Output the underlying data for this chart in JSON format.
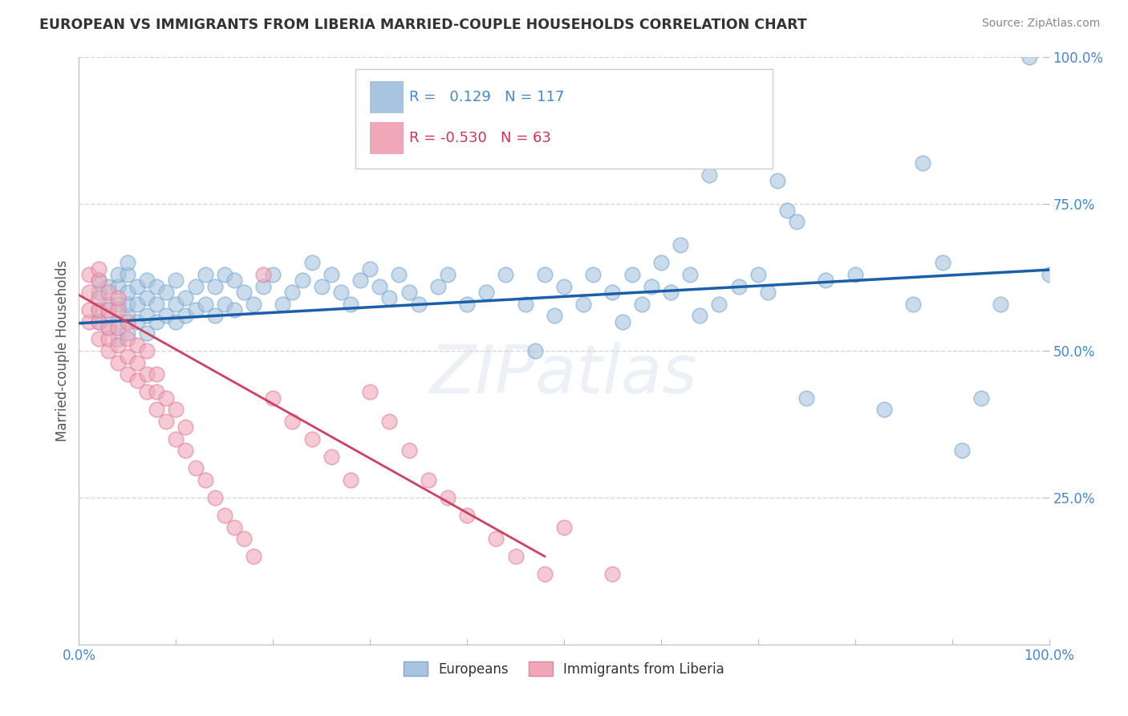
{
  "title": "EUROPEAN VS IMMIGRANTS FROM LIBERIA MARRIED-COUPLE HOUSEHOLDS CORRELATION CHART",
  "source": "Source: ZipAtlas.com",
  "ylabel": "Married-couple Households",
  "watermark": "ZIPatlas",
  "blue_R": 0.129,
  "blue_N": 117,
  "pink_R": -0.53,
  "pink_N": 63,
  "blue_color": "#a8c4e0",
  "pink_color": "#f0a8b8",
  "blue_edge_color": "#7aaad0",
  "pink_edge_color": "#e080a0",
  "blue_line_color": "#1a5fa8",
  "pink_line_color": "#d04060",
  "legend_blue_label": "Europeans",
  "legend_pink_label": "Immigrants from Liberia",
  "xlim": [
    0.0,
    1.0
  ],
  "ylim": [
    0.0,
    1.0
  ],
  "x_ticks": [
    0.0,
    0.1,
    0.2,
    0.3,
    0.4,
    0.5,
    0.6,
    0.7,
    0.8,
    0.9,
    1.0
  ],
  "x_tick_labels": [
    "0.0%",
    "",
    "",
    "",
    "",
    "",
    "",
    "",
    "",
    "",
    "100.0%"
  ],
  "y_ticks": [
    0.0,
    0.25,
    0.5,
    0.75,
    1.0
  ],
  "y_tick_labels": [
    "",
    "25.0%",
    "50.0%",
    "75.0%",
    "100.0%"
  ],
  "grid_color": "#cccccc",
  "background_color": "#ffffff",
  "title_color": "#333333",
  "source_color": "#888888",
  "tick_color": "#4488cc",
  "ylabel_color": "#555555",
  "blue_line_start_x": 0.0,
  "blue_line_end_x": 1.0,
  "blue_line_start_y": 0.547,
  "blue_line_end_y": 0.638,
  "pink_line_start_x": 0.0,
  "pink_line_end_x": 0.48,
  "pink_line_start_y": 0.595,
  "pink_line_end_y": 0.15,
  "blue_points_x": [
    0.02,
    0.02,
    0.02,
    0.02,
    0.03,
    0.03,
    0.03,
    0.03,
    0.04,
    0.04,
    0.04,
    0.04,
    0.04,
    0.05,
    0.05,
    0.05,
    0.05,
    0.05,
    0.05,
    0.06,
    0.06,
    0.06,
    0.07,
    0.07,
    0.07,
    0.07,
    0.08,
    0.08,
    0.08,
    0.09,
    0.09,
    0.1,
    0.1,
    0.1,
    0.11,
    0.11,
    0.12,
    0.12,
    0.13,
    0.13,
    0.14,
    0.14,
    0.15,
    0.15,
    0.16,
    0.16,
    0.17,
    0.18,
    0.19,
    0.2,
    0.21,
    0.22,
    0.23,
    0.24,
    0.25,
    0.26,
    0.27,
    0.28,
    0.29,
    0.3,
    0.31,
    0.32,
    0.33,
    0.34,
    0.35,
    0.37,
    0.38,
    0.4,
    0.42,
    0.44,
    0.46,
    0.47,
    0.48,
    0.49,
    0.5,
    0.52,
    0.53,
    0.55,
    0.56,
    0.57,
    0.58,
    0.59,
    0.6,
    0.61,
    0.62,
    0.63,
    0.64,
    0.65,
    0.66,
    0.68,
    0.7,
    0.71,
    0.72,
    0.73,
    0.74,
    0.75,
    0.77,
    0.8,
    0.83,
    0.86,
    0.87,
    0.89,
    0.91,
    0.93,
    0.95,
    0.98,
    1.0
  ],
  "blue_points_y": [
    0.55,
    0.57,
    0.6,
    0.62,
    0.54,
    0.56,
    0.58,
    0.61,
    0.52,
    0.55,
    0.58,
    0.61,
    0.63,
    0.53,
    0.56,
    0.58,
    0.6,
    0.63,
    0.65,
    0.55,
    0.58,
    0.61,
    0.53,
    0.56,
    0.59,
    0.62,
    0.55,
    0.58,
    0.61,
    0.56,
    0.6,
    0.55,
    0.58,
    0.62,
    0.56,
    0.59,
    0.57,
    0.61,
    0.58,
    0.63,
    0.56,
    0.61,
    0.58,
    0.63,
    0.57,
    0.62,
    0.6,
    0.58,
    0.61,
    0.63,
    0.58,
    0.6,
    0.62,
    0.65,
    0.61,
    0.63,
    0.6,
    0.58,
    0.62,
    0.64,
    0.61,
    0.59,
    0.63,
    0.6,
    0.58,
    0.61,
    0.63,
    0.58,
    0.6,
    0.63,
    0.58,
    0.5,
    0.63,
    0.56,
    0.61,
    0.58,
    0.63,
    0.6,
    0.55,
    0.63,
    0.58,
    0.61,
    0.65,
    0.6,
    0.68,
    0.63,
    0.56,
    0.8,
    0.58,
    0.61,
    0.63,
    0.6,
    0.79,
    0.74,
    0.72,
    0.42,
    0.62,
    0.63,
    0.4,
    0.58,
    0.82,
    0.65,
    0.33,
    0.42,
    0.58,
    1.0,
    0.63
  ],
  "pink_points_x": [
    0.01,
    0.01,
    0.01,
    0.01,
    0.02,
    0.02,
    0.02,
    0.02,
    0.02,
    0.02,
    0.03,
    0.03,
    0.03,
    0.03,
    0.03,
    0.04,
    0.04,
    0.04,
    0.04,
    0.04,
    0.05,
    0.05,
    0.05,
    0.05,
    0.06,
    0.06,
    0.06,
    0.07,
    0.07,
    0.07,
    0.08,
    0.08,
    0.08,
    0.09,
    0.09,
    0.1,
    0.1,
    0.11,
    0.11,
    0.12,
    0.13,
    0.14,
    0.15,
    0.16,
    0.17,
    0.18,
    0.19,
    0.2,
    0.22,
    0.24,
    0.26,
    0.28,
    0.3,
    0.32,
    0.34,
    0.36,
    0.38,
    0.4,
    0.43,
    0.45,
    0.48,
    0.5,
    0.55
  ],
  "pink_points_y": [
    0.55,
    0.57,
    0.6,
    0.63,
    0.52,
    0.55,
    0.57,
    0.59,
    0.62,
    0.64,
    0.5,
    0.52,
    0.54,
    0.57,
    0.6,
    0.48,
    0.51,
    0.54,
    0.57,
    0.59,
    0.46,
    0.49,
    0.52,
    0.55,
    0.45,
    0.48,
    0.51,
    0.43,
    0.46,
    0.5,
    0.4,
    0.43,
    0.46,
    0.38,
    0.42,
    0.35,
    0.4,
    0.33,
    0.37,
    0.3,
    0.28,
    0.25,
    0.22,
    0.2,
    0.18,
    0.15,
    0.63,
    0.42,
    0.38,
    0.35,
    0.32,
    0.28,
    0.43,
    0.38,
    0.33,
    0.28,
    0.25,
    0.22,
    0.18,
    0.15,
    0.12,
    0.2,
    0.12
  ]
}
